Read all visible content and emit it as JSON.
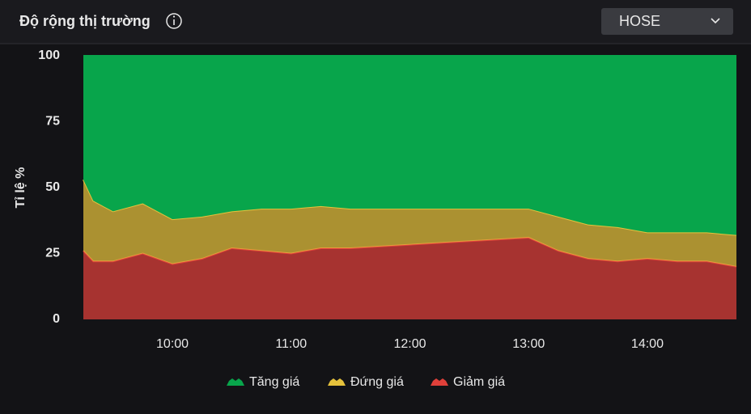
{
  "header": {
    "title": "Độ rộng thị trường",
    "exchange": "HOSE"
  },
  "chart_data": {
    "type": "stacked_area",
    "ylabel": "Tỉ lệ %",
    "x": [
      "09:15",
      "09:20",
      "09:30",
      "09:45",
      "10:00",
      "10:15",
      "10:30",
      "10:45",
      "11:00",
      "11:15",
      "11:30",
      "13:00",
      "13:15",
      "13:30",
      "13:45",
      "14:00",
      "14:15",
      "14:30",
      "14:45"
    ],
    "series": [
      {
        "name": "Tăng giá",
        "color": "#08a54b",
        "values": [
          47,
          55,
          59,
          56,
          62,
          61,
          59,
          58,
          58,
          57,
          58,
          58,
          61,
          64,
          65,
          67,
          67,
          67,
          68
        ]
      },
      {
        "name": "Đứng giá",
        "color": "#e6c23c",
        "values": [
          27,
          23,
          19,
          19,
          17,
          16,
          14,
          16,
          17,
          16,
          15,
          11,
          13,
          13,
          13,
          10,
          11,
          11,
          12
        ]
      },
      {
        "name": "Giảm giá",
        "color": "#e0403a",
        "values": [
          26,
          22,
          22,
          25,
          21,
          23,
          27,
          26,
          25,
          27,
          27,
          31,
          26,
          23,
          22,
          23,
          22,
          22,
          20
        ]
      }
    ],
    "xlim": [
      "09:15",
      "14:45"
    ],
    "xticks": [
      "10:00",
      "11:00",
      "12:00",
      "13:00",
      "14:00"
    ],
    "ylim": [
      0,
      100
    ],
    "yticks": [
      0,
      25,
      50,
      75,
      100
    ],
    "grid": false,
    "legend": "bottom"
  }
}
